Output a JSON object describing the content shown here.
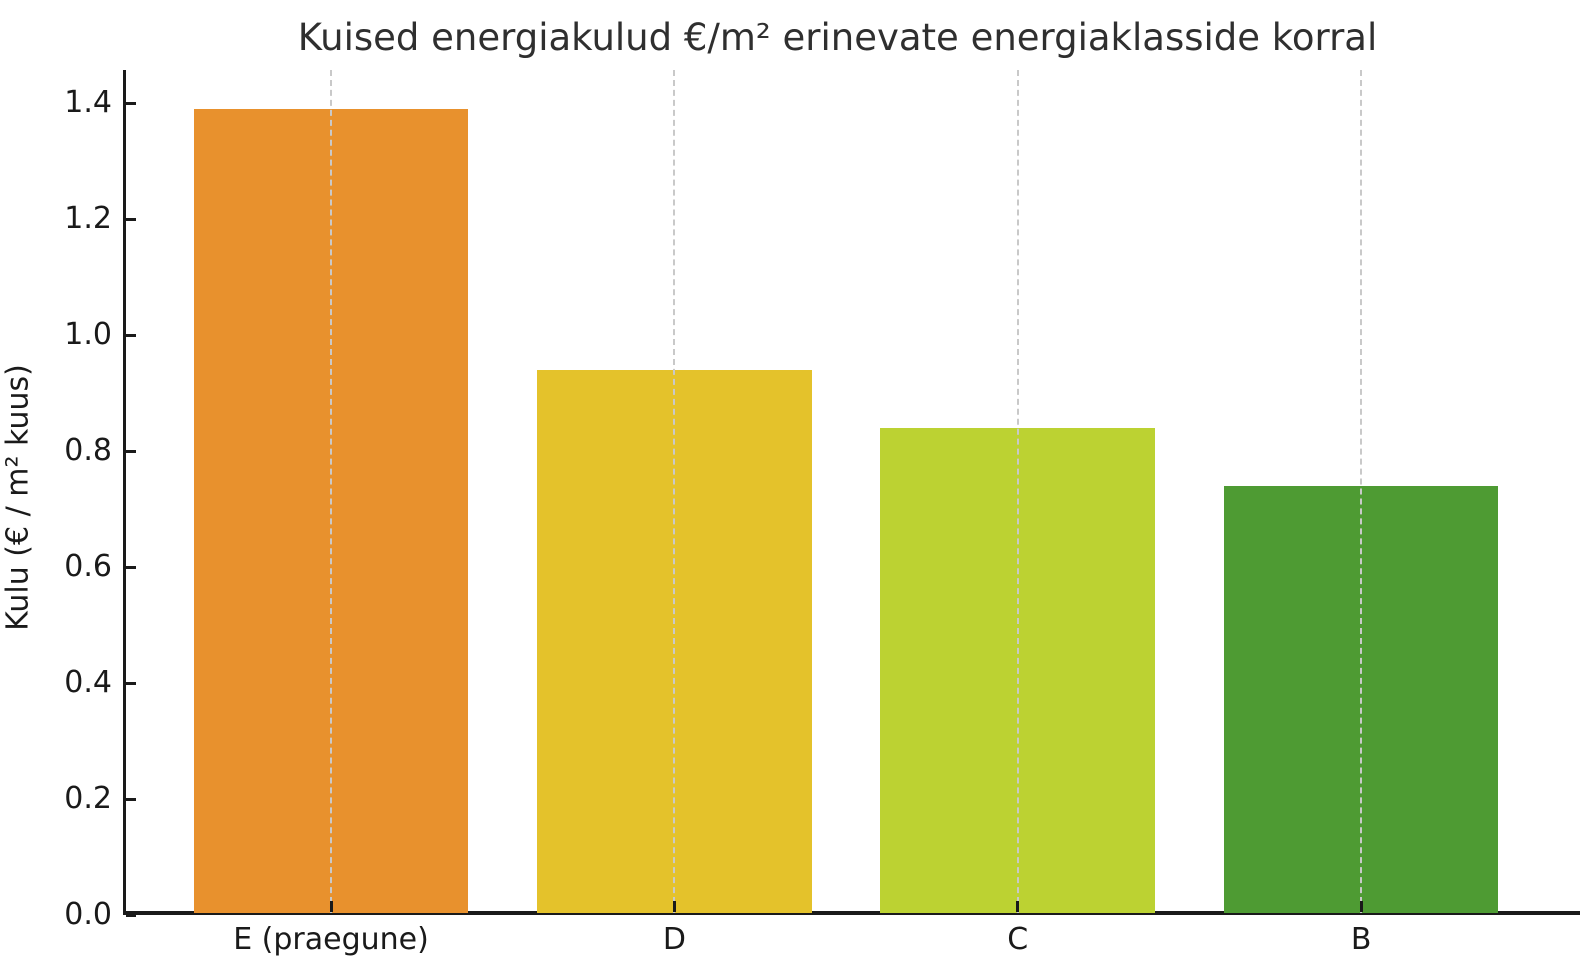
{
  "title": "Kuised energiakulud €/m² erinevate energiaklasside korral",
  "chart_data": {
    "type": "bar",
    "title": "Kuised energiakulud €/m² erinevate energiaklasside korral",
    "categories": [
      "E (praegune)",
      "D",
      "C",
      "B"
    ],
    "values": [
      1.39,
      0.94,
      0.84,
      0.74
    ],
    "bar_colors": [
      "#E8912D",
      "#E4C22B",
      "#BCD232",
      "#4E9B33"
    ],
    "xlabel": "",
    "ylabel": "Kulu (€ / m² kuus)",
    "ylim": [
      0,
      1.45
    ],
    "yticks": [
      "0.0",
      "0.2",
      "0.4",
      "0.6",
      "0.8",
      "1.0",
      "1.2",
      "1.4"
    ],
    "grid": "vertical-dashed-at-category-centers",
    "legend": "none",
    "background": "#ffffff",
    "axis_color": "#1a1a1a",
    "grid_color": "#c9c9c9",
    "title_color": "#2f2f2f"
  }
}
